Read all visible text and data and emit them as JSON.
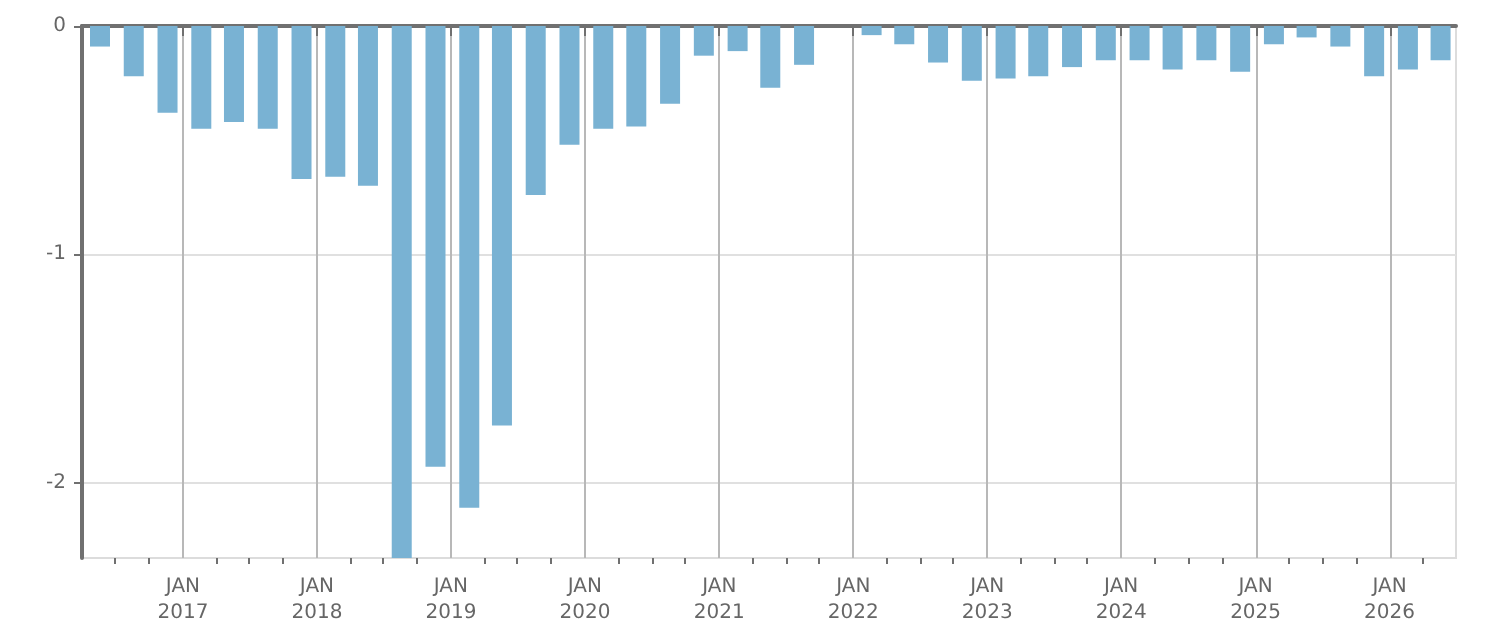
{
  "chart_data": {
    "type": "bar",
    "color": "#79b2d3",
    "x": [
      "2016-05-20",
      "2016-08-20",
      "2016-11-20",
      "2017-02-20",
      "2017-05-20",
      "2017-08-20",
      "2017-11-20",
      "2018-02-20",
      "2018-05-20",
      "2018-08-20",
      "2018-11-20",
      "2019-02-20",
      "2019-05-20",
      "2019-08-20",
      "2019-11-20",
      "2020-02-20",
      "2020-05-20",
      "2020-08-20",
      "2020-11-20",
      "2021-02-20",
      "2021-05-20",
      "2021-08-20",
      "2021-11-20",
      "2022-02-20",
      "2022-05-20",
      "2022-08-20",
      "2022-11-20",
      "2023-02-20",
      "2023-05-20",
      "2023-08-20",
      "2023-11-20",
      "2024-02-20",
      "2024-05-20",
      "2024-08-20",
      "2024-11-20",
      "2025-02-20",
      "2025-05-20",
      "2025-08-20",
      "2025-11-20",
      "2026-02-20",
      "2026-05-20"
    ],
    "values": [
      -0.09,
      -0.22,
      -0.38,
      -0.45,
      -0.42,
      -0.45,
      -0.67,
      -0.66,
      -0.7,
      -2.33,
      -1.93,
      -2.11,
      -1.75,
      -0.74,
      -0.52,
      -0.45,
      -0.44,
      -0.34,
      -0.13,
      -0.11,
      -0.27,
      -0.17,
      null,
      -0.04,
      -0.08,
      -0.16,
      -0.24,
      -0.23,
      -0.22,
      -0.18,
      -0.15,
      -0.15,
      -0.19,
      -0.15,
      -0.2,
      -0.08,
      -0.05,
      -0.09,
      -0.22,
      -0.19,
      -0.15
    ],
    "xlim": [
      "2016-04-01",
      "2026-07-01"
    ],
    "xticks": [
      {
        "value": "2016-07-01",
        "label": null
      },
      {
        "value": "2016-10-01",
        "label": null
      },
      {
        "value": "2017-01-01",
        "label": "JAN\n2017"
      },
      {
        "value": "2017-04-01",
        "label": null
      },
      {
        "value": "2017-07-01",
        "label": null
      },
      {
        "value": "2017-10-01",
        "label": null
      },
      {
        "value": "2018-01-01",
        "label": "JAN\n2018"
      },
      {
        "value": "2018-04-01",
        "label": null
      },
      {
        "value": "2018-07-01",
        "label": null
      },
      {
        "value": "2018-10-01",
        "label": null
      },
      {
        "value": "2019-01-01",
        "label": "JAN\n2019"
      },
      {
        "value": "2019-04-01",
        "label": null
      },
      {
        "value": "2019-07-01",
        "label": null
      },
      {
        "value": "2019-10-01",
        "label": null
      },
      {
        "value": "2020-01-01",
        "label": "JAN\n2020"
      },
      {
        "value": "2020-04-01",
        "label": null
      },
      {
        "value": "2020-07-01",
        "label": null
      },
      {
        "value": "2020-10-01",
        "label": null
      },
      {
        "value": "2021-01-01",
        "label": "JAN\n2021"
      },
      {
        "value": "2021-04-01",
        "label": null
      },
      {
        "value": "2021-07-01",
        "label": null
      },
      {
        "value": "2021-10-01",
        "label": null
      },
      {
        "value": "2022-01-01",
        "label": "JAN\n2022"
      },
      {
        "value": "2022-04-01",
        "label": null
      },
      {
        "value": "2022-07-01",
        "label": null
      },
      {
        "value": "2022-10-01",
        "label": null
      },
      {
        "value": "2023-01-01",
        "label": "JAN\n2023"
      },
      {
        "value": "2023-04-01",
        "label": null
      },
      {
        "value": "2023-07-01",
        "label": null
      },
      {
        "value": "2023-10-01",
        "label": null
      },
      {
        "value": "2024-01-01",
        "label": "JAN\n2024"
      },
      {
        "value": "2024-04-01",
        "label": null
      },
      {
        "value": "2024-07-01",
        "label": null
      },
      {
        "value": "2024-10-01",
        "label": null
      },
      {
        "value": "2025-01-01",
        "label": "JAN\n2025"
      },
      {
        "value": "2025-04-01",
        "label": null
      },
      {
        "value": "2025-07-01",
        "label": null
      },
      {
        "value": "2025-10-01",
        "label": null
      },
      {
        "value": "2026-01-01",
        "label": "JAN\n2026"
      },
      {
        "value": "2026-04-01",
        "label": null
      }
    ],
    "ylim": [
      -2.33,
      0
    ],
    "yticks": [
      0,
      -1,
      -2
    ],
    "grid": true
  }
}
